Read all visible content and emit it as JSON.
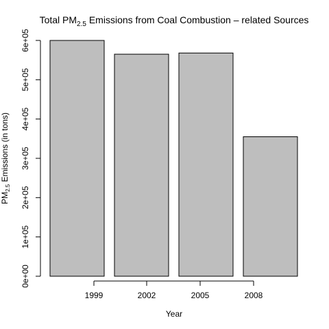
{
  "chart_data": {
    "type": "bar",
    "title": {
      "prefix": "Total PM",
      "subscript": "2.5",
      "suffix": " Emissions from Coal Combustion – related Sources"
    },
    "xlabel": "Year",
    "ylabel": {
      "prefix": "PM",
      "subscript": "2.5",
      "suffix": " Emissions (in tons)"
    },
    "categories": [
      "1999",
      "2002",
      "2005",
      "2008"
    ],
    "values": [
      600000,
      565000,
      568000,
      355000
    ],
    "ylim": [
      0,
      600000
    ],
    "y_ticks": [
      {
        "value": 0,
        "label": "0e+00"
      },
      {
        "value": 100000,
        "label": "1e+05"
      },
      {
        "value": 200000,
        "label": "2e+05"
      },
      {
        "value": 300000,
        "label": "3e+05"
      },
      {
        "value": 400000,
        "label": "4e+05"
      },
      {
        "value": 500000,
        "label": "5e+05"
      },
      {
        "value": 600000,
        "label": "6e+05"
      }
    ],
    "x_ticks": [
      "1999",
      "2002",
      "2005",
      "2008"
    ],
    "bar_color": "#bebebe",
    "grid": false
  }
}
